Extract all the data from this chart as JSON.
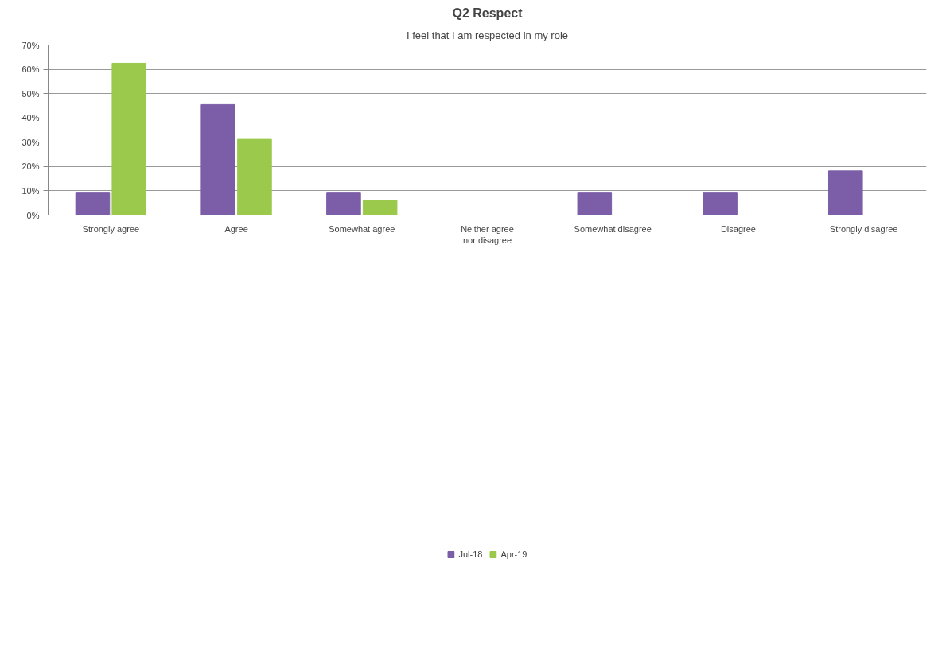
{
  "chart_data": {
    "type": "bar",
    "title": "Q2 Respect",
    "subtitle": "I feel that I am respected in my role",
    "categories": [
      "Strongly agree",
      "Agree",
      "Somewhat agree",
      "Neither agree\nnor disagree",
      "Somewhat disagree",
      "Disagree",
      "Strongly disagree"
    ],
    "series": [
      {
        "name": "Jul-18",
        "color": "#7b5ea7",
        "values": [
          9.1,
          45.5,
          9.1,
          0,
          9.1,
          9.1,
          18.2
        ]
      },
      {
        "name": "Apr-19",
        "color": "#9bc94b",
        "values": [
          62.5,
          31.2,
          6.2,
          0,
          0,
          0,
          0
        ]
      }
    ],
    "ylim": [
      0,
      70
    ],
    "yticks": [
      {
        "value": 0,
        "label": "0%"
      },
      {
        "value": 10,
        "label": "10%"
      },
      {
        "value": 20,
        "label": "20%"
      },
      {
        "value": 30,
        "label": "30%"
      },
      {
        "value": 40,
        "label": "40%"
      },
      {
        "value": 50,
        "label": "50%"
      },
      {
        "value": 60,
        "label": "60%"
      },
      {
        "value": 70,
        "label": "70%"
      }
    ],
    "grid": "y",
    "legend": "bottom"
  }
}
